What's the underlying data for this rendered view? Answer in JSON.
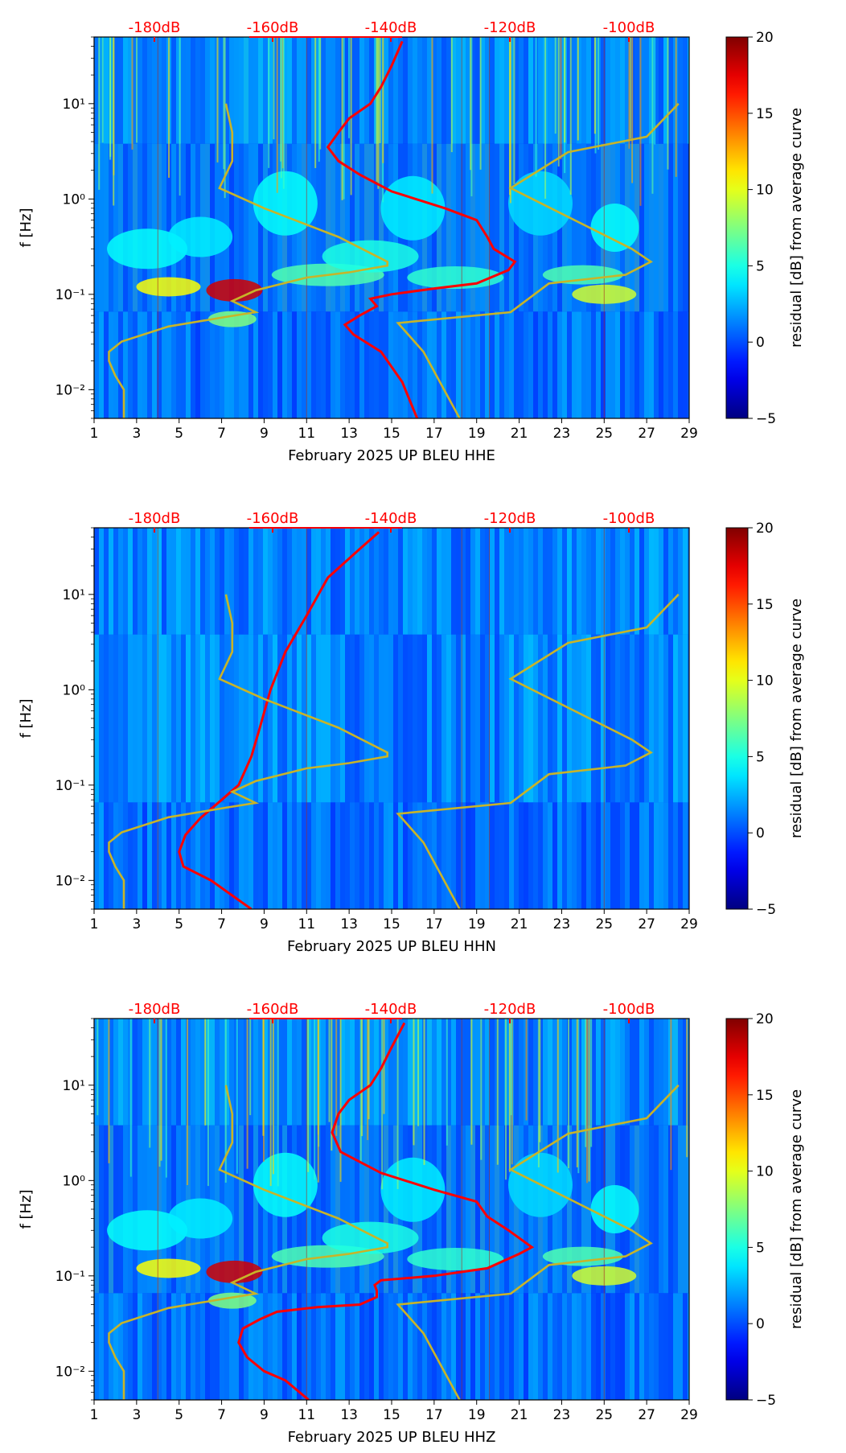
{
  "chart_data": [
    {
      "type": "heatmap",
      "title": "",
      "xlabel": "February 2025 UP BLEU  HHE",
      "ylabel": "f [Hz]",
      "x_tick_labels": [
        "1",
        "3",
        "5",
        "7",
        "9",
        "11",
        "13",
        "15",
        "17",
        "19",
        "21",
        "23",
        "25",
        "27",
        "29"
      ],
      "xlim": [
        1,
        29
      ],
      "yscale": "log",
      "ylim": [
        0.005,
        50
      ],
      "y_tick_labels": [
        "10⁻²",
        "10⁻¹",
        "10⁰",
        "10¹"
      ],
      "db_axis": {
        "labels": [
          "-180dB",
          "-160dB",
          "-140dB",
          "-120dB",
          "-100dB"
        ],
        "color": "#ff0000"
      },
      "colorbar": {
        "label": "residual [dB] from average curve",
        "range": [
          -5,
          20
        ],
        "tick_labels": [
          "−5",
          "0",
          "5",
          "10",
          "15",
          "20"
        ]
      },
      "series": [
        {
          "color": "#ff0000",
          "points": [
            [
              16.2,
              0.005
            ],
            [
              15.5,
              0.012
            ],
            [
              14.5,
              0.025
            ],
            [
              13.2,
              0.038
            ],
            [
              12.8,
              0.048
            ],
            [
              13.5,
              0.06
            ],
            [
              14.3,
              0.075
            ],
            [
              14.0,
              0.09
            ],
            [
              15.0,
              0.1
            ],
            [
              17.0,
              0.115
            ],
            [
              19.0,
              0.13
            ],
            [
              20.5,
              0.18
            ],
            [
              20.8,
              0.22
            ],
            [
              19.8,
              0.3
            ],
            [
              19.5,
              0.4
            ],
            [
              19.0,
              0.6
            ],
            [
              17.5,
              0.8
            ],
            [
              15.0,
              1.2
            ],
            [
              13.5,
              1.8
            ],
            [
              12.5,
              2.5
            ],
            [
              12.0,
              3.5
            ],
            [
              12.5,
              5
            ],
            [
              13.0,
              7
            ],
            [
              14.0,
              10
            ],
            [
              14.5,
              15
            ],
            [
              15.0,
              25
            ],
            [
              15.5,
              45
            ]
          ]
        },
        {
          "color": "#c8b428",
          "points": [
            [
              2.4,
              0.005
            ],
            [
              2.4,
              0.01
            ],
            [
              2.0,
              0.014
            ],
            [
              1.7,
              0.02
            ],
            [
              1.7,
              0.025
            ],
            [
              2.3,
              0.032
            ],
            [
              4.5,
              0.046
            ],
            [
              7.2,
              0.058
            ],
            [
              8.6,
              0.065
            ],
            [
              7.5,
              0.085
            ],
            [
              8.6,
              0.11
            ],
            [
              11.0,
              0.15
            ],
            [
              13.0,
              0.17
            ],
            [
              14.8,
              0.2
            ],
            [
              14.8,
              0.22
            ],
            [
              12.5,
              0.4
            ],
            [
              9.0,
              0.8
            ],
            [
              6.9,
              1.3
            ],
            [
              7.5,
              2.5
            ],
            [
              7.5,
              5
            ],
            [
              7.2,
              10
            ]
          ]
        },
        {
          "color": "#c8b428",
          "points": [
            [
              18.2,
              0.005
            ],
            [
              16.5,
              0.025
            ],
            [
              15.3,
              0.05
            ],
            [
              20.6,
              0.065
            ],
            [
              22.4,
              0.13
            ],
            [
              26.0,
              0.16
            ],
            [
              27.2,
              0.22
            ],
            [
              26.3,
              0.3
            ],
            [
              20.6,
              1.3
            ],
            [
              23.3,
              3.1
            ],
            [
              27.0,
              4.5
            ],
            [
              28.5,
              10
            ]
          ]
        }
      ]
    },
    {
      "type": "heatmap",
      "title": "",
      "xlabel": "February 2025 UP BLEU  HHN",
      "ylabel": "f [Hz]",
      "x_tick_labels": [
        "1",
        "3",
        "5",
        "7",
        "9",
        "11",
        "13",
        "15",
        "17",
        "19",
        "21",
        "23",
        "25",
        "27",
        "29"
      ],
      "xlim": [
        1,
        29
      ],
      "yscale": "log",
      "ylim": [
        0.005,
        50
      ],
      "y_tick_labels": [
        "10⁻²",
        "10⁻¹",
        "10⁰",
        "10¹"
      ],
      "db_axis": {
        "labels": [
          "-180dB",
          "-160dB",
          "-140dB",
          "-120dB",
          "-100dB"
        ],
        "color": "#ff0000"
      },
      "colorbar": {
        "label": "residual [dB] from average curve",
        "range": [
          -5,
          20
        ],
        "tick_labels": [
          "−5",
          "0",
          "5",
          "10",
          "15",
          "20"
        ]
      },
      "series": [
        {
          "color": "#ff0000",
          "points": [
            [
              8.4,
              0.005
            ],
            [
              6.5,
              0.01
            ],
            [
              5.2,
              0.014
            ],
            [
              5.0,
              0.02
            ],
            [
              5.3,
              0.03
            ],
            [
              6.0,
              0.045
            ],
            [
              7.0,
              0.07
            ],
            [
              7.8,
              0.1
            ],
            [
              8.4,
              0.2
            ],
            [
              8.8,
              0.4
            ],
            [
              9.3,
              1.0
            ],
            [
              10.0,
              2.5
            ],
            [
              11.0,
              6
            ],
            [
              12.0,
              15
            ],
            [
              13.5,
              30
            ],
            [
              14.4,
              45
            ]
          ]
        },
        {
          "color": "#c8b428",
          "points": [
            [
              2.4,
              0.005
            ],
            [
              2.4,
              0.01
            ],
            [
              2.0,
              0.014
            ],
            [
              1.7,
              0.02
            ],
            [
              1.7,
              0.025
            ],
            [
              2.3,
              0.032
            ],
            [
              4.5,
              0.046
            ],
            [
              7.2,
              0.058
            ],
            [
              8.6,
              0.065
            ],
            [
              7.5,
              0.085
            ],
            [
              8.6,
              0.11
            ],
            [
              11.0,
              0.15
            ],
            [
              13.0,
              0.17
            ],
            [
              14.8,
              0.2
            ],
            [
              14.8,
              0.22
            ],
            [
              12.5,
              0.4
            ],
            [
              9.0,
              0.8
            ],
            [
              6.9,
              1.3
            ],
            [
              7.5,
              2.5
            ],
            [
              7.5,
              5
            ],
            [
              7.2,
              10
            ]
          ]
        },
        {
          "color": "#c8b428",
          "points": [
            [
              18.2,
              0.005
            ],
            [
              16.5,
              0.025
            ],
            [
              15.3,
              0.05
            ],
            [
              20.6,
              0.065
            ],
            [
              22.4,
              0.13
            ],
            [
              26.0,
              0.16
            ],
            [
              27.2,
              0.22
            ],
            [
              26.3,
              0.3
            ],
            [
              20.6,
              1.3
            ],
            [
              23.3,
              3.1
            ],
            [
              27.0,
              4.5
            ],
            [
              28.5,
              10
            ]
          ]
        }
      ]
    },
    {
      "type": "heatmap",
      "title": "",
      "xlabel": "February 2025 UP BLEU  HHZ",
      "ylabel": "f [Hz]",
      "x_tick_labels": [
        "1",
        "3",
        "5",
        "7",
        "9",
        "11",
        "13",
        "15",
        "17",
        "19",
        "21",
        "23",
        "25",
        "27",
        "29"
      ],
      "xlim": [
        1,
        29
      ],
      "yscale": "log",
      "ylim": [
        0.005,
        50
      ],
      "y_tick_labels": [
        "10⁻²",
        "10⁻¹",
        "10⁰",
        "10¹"
      ],
      "db_axis": {
        "labels": [
          "-180dB",
          "-160dB",
          "-140dB",
          "-120dB",
          "-100dB"
        ],
        "color": "#ff0000"
      },
      "colorbar": {
        "label": "residual [dB] from average curve",
        "range": [
          -5,
          20
        ],
        "tick_labels": [
          "−5",
          "0",
          "5",
          "10",
          "15",
          "20"
        ]
      },
      "series": [
        {
          "color": "#ff0000",
          "points": [
            [
              11.1,
              0.005
            ],
            [
              10.0,
              0.008
            ],
            [
              9.0,
              0.01
            ],
            [
              8.2,
              0.014
            ],
            [
              7.8,
              0.02
            ],
            [
              8.0,
              0.028
            ],
            [
              8.8,
              0.035
            ],
            [
              9.6,
              0.042
            ],
            [
              11.5,
              0.047
            ],
            [
              13.5,
              0.05
            ],
            [
              14.3,
              0.06
            ],
            [
              14.3,
              0.07
            ],
            [
              14.2,
              0.08
            ],
            [
              14.5,
              0.09
            ],
            [
              17.0,
              0.1
            ],
            [
              19.5,
              0.12
            ],
            [
              21.0,
              0.17
            ],
            [
              21.6,
              0.2
            ],
            [
              20.5,
              0.3
            ],
            [
              19.5,
              0.42
            ],
            [
              19.0,
              0.6
            ],
            [
              17.0,
              0.8
            ],
            [
              14.5,
              1.2
            ],
            [
              12.6,
              2.0
            ],
            [
              12.2,
              3.2
            ],
            [
              12.5,
              5
            ],
            [
              13.0,
              7
            ],
            [
              14.0,
              10
            ],
            [
              14.5,
              15
            ],
            [
              15.0,
              25
            ],
            [
              15.6,
              45
            ]
          ]
        },
        {
          "color": "#c8b428",
          "points": [
            [
              2.4,
              0.005
            ],
            [
              2.4,
              0.01
            ],
            [
              2.0,
              0.014
            ],
            [
              1.7,
              0.02
            ],
            [
              1.7,
              0.025
            ],
            [
              2.3,
              0.032
            ],
            [
              4.5,
              0.046
            ],
            [
              7.2,
              0.058
            ],
            [
              8.6,
              0.065
            ],
            [
              7.5,
              0.085
            ],
            [
              8.6,
              0.11
            ],
            [
              11.0,
              0.15
            ],
            [
              13.0,
              0.17
            ],
            [
              14.8,
              0.2
            ],
            [
              14.8,
              0.22
            ],
            [
              12.5,
              0.4
            ],
            [
              9.0,
              0.8
            ],
            [
              6.9,
              1.3
            ],
            [
              7.5,
              2.5
            ],
            [
              7.5,
              5
            ],
            [
              7.2,
              10
            ]
          ]
        },
        {
          "color": "#c8b428",
          "points": [
            [
              18.2,
              0.005
            ],
            [
              16.5,
              0.025
            ],
            [
              15.3,
              0.05
            ],
            [
              20.6,
              0.065
            ],
            [
              22.4,
              0.13
            ],
            [
              26.0,
              0.16
            ],
            [
              27.2,
              0.22
            ],
            [
              26.3,
              0.3
            ],
            [
              20.6,
              1.3
            ],
            [
              23.3,
              3.1
            ],
            [
              27.0,
              4.5
            ],
            [
              28.5,
              10
            ]
          ]
        }
      ]
    }
  ]
}
